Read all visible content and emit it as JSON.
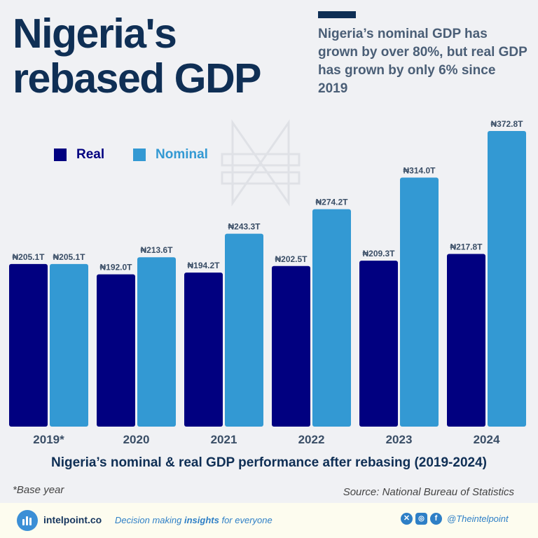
{
  "header": {
    "title_line1": "Nigeria's",
    "title_line2": "rebased GDP",
    "subtitle": "Nigeria’s nominal GDP has grown by over 80%, but real GDP has grown by only 6% since 2019"
  },
  "chart_data": {
    "type": "bar",
    "categories": [
      "2019*",
      "2020",
      "2021",
      "2022",
      "2023",
      "2024"
    ],
    "series": [
      {
        "name": "Real",
        "values": [
          205.1,
          192.0,
          194.2,
          202.5,
          209.3,
          217.8
        ],
        "labels": [
          "₦205.1T",
          "₦192.0T",
          "₦194.2T",
          "₦202.5T",
          "₦209.3T",
          "₦217.8T"
        ],
        "color": "#010080"
      },
      {
        "name": "Nominal",
        "values": [
          205.1,
          213.6,
          243.3,
          274.2,
          314.0,
          372.8
        ],
        "labels": [
          "₦205.1T",
          "₦213.6T",
          "₦243.3T",
          "₦274.2T",
          "₦314.0T",
          "₦372.8T"
        ],
        "color": "#3399d3"
      }
    ],
    "ylim": [
      0,
      372.8
    ],
    "grid": false,
    "legend": "top-left",
    "title": "Nigeria’s nominal & real GDP performance after rebasing (2019-2024)",
    "xlabel": "",
    "ylabel": ""
  },
  "notes": {
    "base_year": "*Base year",
    "source": "Source: National Bureau of Statistics"
  },
  "footer": {
    "brand": "intelpoint.co",
    "tagline_pre": "Decision making ",
    "tagline_bold": "insights",
    "tagline_post": " for everyone",
    "handle": "@Theintelpoint"
  },
  "colors": {
    "title": "#0f2f55",
    "subtitle": "#4a5e76",
    "real": "#010080",
    "nominal": "#3399d3",
    "footer_bg": "#fdfcef"
  },
  "icons": [
    "naira-watermark-icon",
    "intelpoint-logo-icon",
    "x-icon",
    "instagram-icon",
    "facebook-icon"
  ]
}
